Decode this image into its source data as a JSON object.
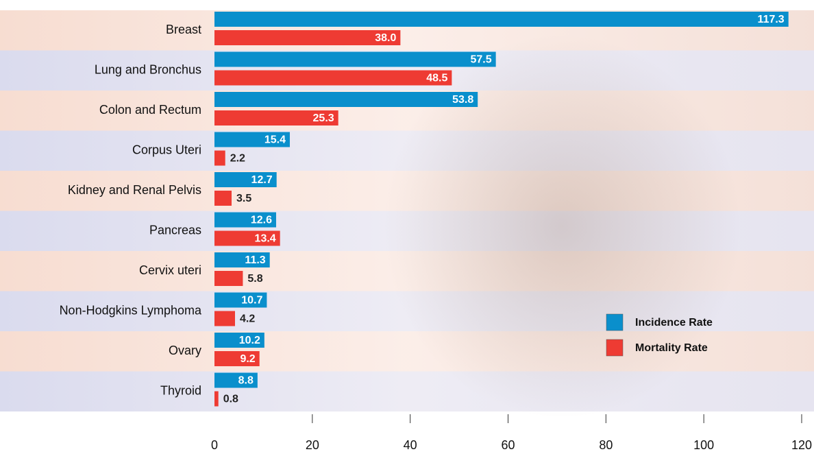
{
  "chart_data": {
    "type": "bar",
    "orientation": "horizontal",
    "categories": [
      "Breast",
      "Lung and Bronchus",
      "Colon and Rectum",
      "Corpus Uteri",
      "Kidney and Renal Pelvis",
      "Pancreas",
      "Cervix uteri",
      "Non-Hodgkins Lymphoma",
      "Ovary",
      "Thyroid"
    ],
    "series": [
      {
        "name": "Incidence Rate",
        "color": "#0a8fcc",
        "values": [
          117.3,
          57.5,
          53.8,
          15.4,
          12.7,
          12.6,
          11.3,
          10.7,
          10.2,
          8.8
        ],
        "value_labels": [
          "117.3",
          "57.5",
          "53.8",
          "15.4",
          "12.7",
          "12.6",
          "11.3",
          "10.7",
          "10.2",
          "8.8"
        ]
      },
      {
        "name": "Mortality Rate",
        "color": "#ee3b33",
        "values": [
          38.0,
          48.5,
          25.3,
          2.2,
          3.5,
          13.4,
          5.8,
          4.2,
          9.2,
          0.8
        ],
        "value_labels": [
          "38.0",
          "48.5",
          "25.3",
          "2.2",
          "3.5",
          "13.4",
          "5.8",
          "4.2",
          "9.2",
          "0.8"
        ]
      }
    ],
    "xlim": [
      0,
      120
    ],
    "xticks": [
      0,
      20,
      40,
      60,
      80,
      100,
      120
    ],
    "legend": "lower right"
  }
}
